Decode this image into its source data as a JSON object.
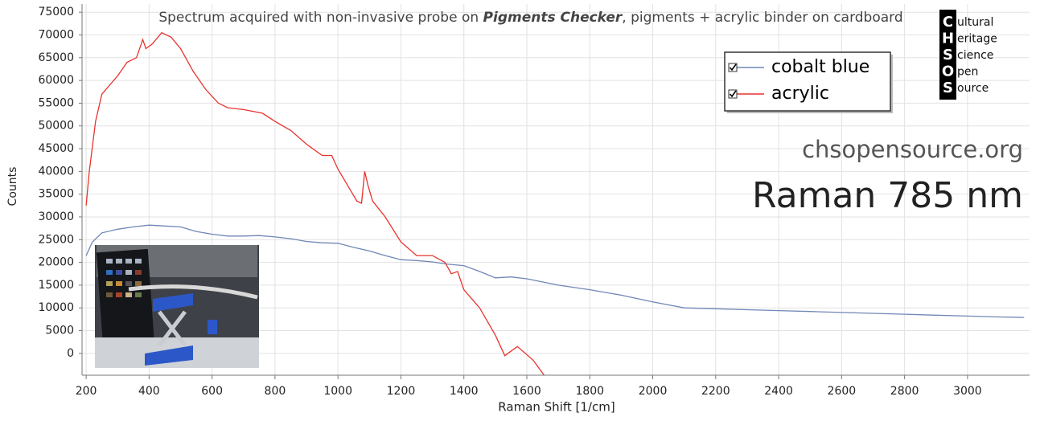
{
  "chart_data": {
    "type": "line",
    "title": {
      "prefix": "Spectrum acquired with non-invasive probe on ",
      "emphasis": "Pigments Checker",
      "suffix": ", pigments + acrylic binder on cardboard"
    },
    "x_label": "Raman Shift [1/cm]",
    "y_label": "Counts",
    "annotations": [
      "chsopensource.org",
      "Raman 785 nm"
    ],
    "logo": {
      "letters": [
        "C",
        "H",
        "S",
        "O",
        "S"
      ],
      "words": [
        "ultural",
        "eritage",
        "cience",
        "pen",
        "ource"
      ]
    },
    "xlim": [
      187,
      3197
    ],
    "ylim": [
      -4800,
      76800
    ],
    "xticks": [
      200,
      400,
      600,
      800,
      1000,
      1200,
      1400,
      1600,
      1800,
      2000,
      2200,
      2400,
      2600,
      2800,
      3000
    ],
    "yticks": [
      0,
      5000,
      10000,
      15000,
      20000,
      25000,
      30000,
      35000,
      40000,
      45000,
      50000,
      55000,
      60000,
      65000,
      70000,
      75000
    ],
    "grid": true,
    "legend": "top-right",
    "series": [
      {
        "name": "cobalt blue",
        "color": "#6f87b6",
        "x": [
          200,
          220,
          250,
          300,
          350,
          400,
          450,
          500,
          550,
          600,
          650,
          700,
          750,
          800,
          850,
          900,
          950,
          1000,
          1050,
          1100,
          1150,
          1200,
          1250,
          1300,
          1350,
          1400,
          1450,
          1500,
          1550,
          1600,
          1700,
          1800,
          1900,
          2000,
          2100,
          2200,
          2300,
          2400,
          2500,
          2600,
          2700,
          2800,
          2900,
          3000,
          3100,
          3180
        ],
        "values": [
          21500,
          24500,
          26500,
          27300,
          27800,
          28200,
          28000,
          27800,
          26800,
          26200,
          25800,
          25800,
          25900,
          25600,
          25200,
          24600,
          24300,
          24200,
          23300,
          22500,
          21500,
          20600,
          20400,
          20100,
          19600,
          19300,
          18000,
          16600,
          16800,
          16400,
          15000,
          14000,
          12800,
          11300,
          10000,
          9800,
          9600,
          9400,
          9200,
          9000,
          8800,
          8600,
          8400,
          8200,
          8000,
          7900
        ]
      },
      {
        "name": "acrylic",
        "color": "#e8322c",
        "x": [
          200,
          210,
          230,
          250,
          300,
          330,
          360,
          380,
          390,
          410,
          440,
          470,
          500,
          540,
          580,
          620,
          650,
          700,
          760,
          800,
          850,
          900,
          950,
          980,
          1000,
          1030,
          1060,
          1075,
          1085,
          1095,
          1110,
          1150,
          1200,
          1250,
          1300,
          1340,
          1360,
          1380,
          1400,
          1450,
          1500,
          1530,
          1570,
          1620,
          1655
        ],
        "values": [
          32500,
          40000,
          51000,
          57000,
          61000,
          64000,
          65000,
          69000,
          67000,
          68000,
          70500,
          69500,
          67000,
          62000,
          58000,
          55000,
          54000,
          53600,
          52800,
          51000,
          49000,
          46000,
          43500,
          43500,
          40500,
          37000,
          33500,
          33000,
          40000,
          37000,
          33500,
          30000,
          24500,
          21500,
          21500,
          20000,
          17500,
          18000,
          14000,
          10000,
          4000,
          -500,
          1500,
          -1500,
          -4800
        ]
      }
    ]
  }
}
